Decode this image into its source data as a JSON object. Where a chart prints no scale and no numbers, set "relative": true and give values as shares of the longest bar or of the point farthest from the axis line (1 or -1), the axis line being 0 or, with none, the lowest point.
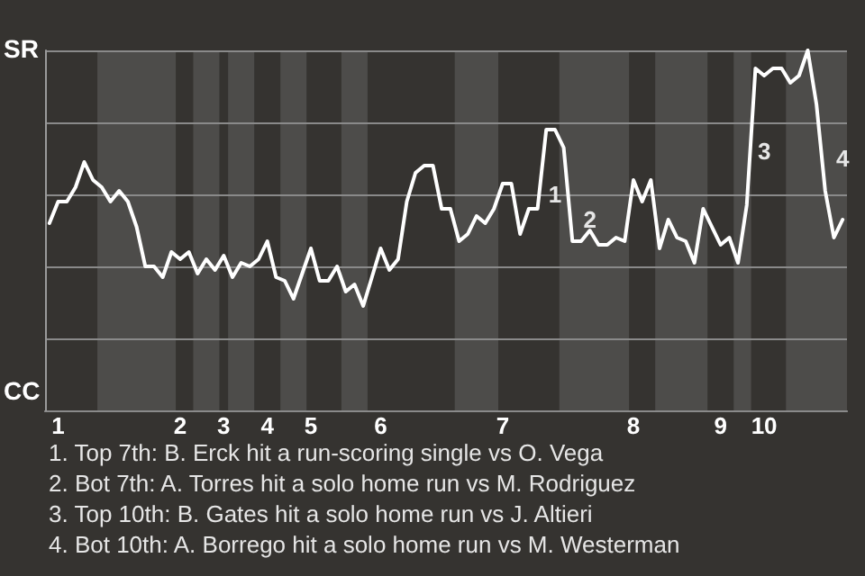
{
  "chart_data": {
    "type": "line",
    "relative": true,
    "categories": [
      null,
      "1",
      null,
      null,
      null,
      null,
      null,
      null,
      null,
      null,
      null,
      null,
      null,
      null,
      null,
      "2",
      null,
      null,
      null,
      null,
      "3",
      null,
      null,
      null,
      null,
      "4",
      null,
      null,
      null,
      null,
      "5",
      null,
      null,
      null,
      null,
      null,
      null,
      null,
      "6",
      null,
      null,
      null,
      null,
      null,
      null,
      null,
      null,
      null,
      null,
      null,
      null,
      null,
      "7",
      null,
      null,
      null,
      null,
      null,
      null,
      null,
      null,
      null,
      null,
      null,
      null,
      null,
      null,
      "8",
      null,
      null,
      null,
      null,
      null,
      null,
      null,
      null,
      null,
      "9",
      null,
      null,
      null,
      null,
      "10",
      null,
      null,
      null,
      null,
      null,
      null,
      null,
      null,
      null
    ],
    "series": [
      {
        "color": "#ffffff",
        "values": [
          0.52,
          0.58,
          0.58,
          0.62,
          0.69,
          0.64,
          0.62,
          0.58,
          0.61,
          0.58,
          0.51,
          0.4,
          0.4,
          0.37,
          0.44,
          0.42,
          0.44,
          0.38,
          0.42,
          0.39,
          0.43,
          0.37,
          0.41,
          0.4,
          0.42,
          0.47,
          0.37,
          0.36,
          0.31,
          0.38,
          0.45,
          0.36,
          0.36,
          0.4,
          0.33,
          0.35,
          0.29,
          0.37,
          0.45,
          0.39,
          0.42,
          0.58,
          0.66,
          0.68,
          0.68,
          0.56,
          0.56,
          0.47,
          0.49,
          0.54,
          0.52,
          0.56,
          0.63,
          0.63,
          0.49,
          0.56,
          0.56,
          0.78,
          0.78,
          0.73,
          0.47,
          0.47,
          0.5,
          0.46,
          0.46,
          0.48,
          0.47,
          0.64,
          0.58,
          0.64,
          0.45,
          0.53,
          0.48,
          0.47,
          0.41,
          0.56,
          0.51,
          0.46,
          0.48,
          0.41,
          0.57,
          0.95,
          0.93,
          0.95,
          0.95,
          0.91,
          0.93,
          1,
          0.85,
          0.61,
          0.48,
          0.53
        ]
      }
    ],
    "grid": "y",
    "marker": "none",
    "line_style": "solid",
    "annotations": [
      "SR",
      "CC",
      "1",
      "2",
      "3",
      "4",
      "1. Top 7th: B. Erck hit a run-scoring single vs O. Vega",
      "2. Bot 7th: A. Torres hit a solo home run vs M. Rodriguez",
      "3. Top 10th: B. Gates hit a solo home run vs J. Altieri",
      "4. Bot 10th: A. Borrego hit a solo home run vs M. Westerman"
    ]
  }
}
